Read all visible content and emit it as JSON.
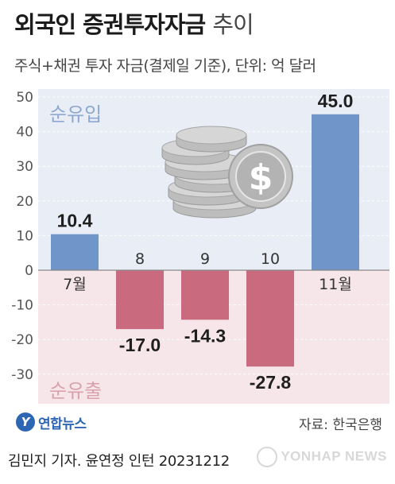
{
  "header": {
    "title_main": "외국인 증권투자자금",
    "title_light": "추이",
    "subtitle": "주식+채권 투자 자금(결제일 기준), 단위: 억 달러"
  },
  "chart_data": {
    "type": "bar",
    "categories": [
      "7월",
      "8",
      "9",
      "10",
      "11월"
    ],
    "values": [
      10.4,
      -17.0,
      -14.3,
      -27.8,
      45.0
    ],
    "value_labels": [
      "10.4",
      "-17.0",
      "-14.3",
      "-27.8",
      "45.0"
    ],
    "ylim": [
      -35,
      50
    ],
    "yticks": [
      -30,
      -20,
      -10,
      0,
      10,
      20,
      30,
      40,
      50
    ],
    "region_labels": {
      "positive": "순유입",
      "negative": "순유출"
    },
    "colors": {
      "positive_bar": "#6f95c9",
      "negative_bar": "#c96a7e",
      "positive_bg": "#e9eef6",
      "negative_bg": "#f6e6ea",
      "positive_label": "#8ea8d1",
      "negative_label": "#d9a0ad"
    }
  },
  "footer": {
    "logo_mark": "Y",
    "logo_text": "연합뉴스",
    "source": "자료: 한국은행",
    "credit": "김민지 기자. 윤연정 인턴  20231212",
    "watermark": "YONHAP NEWS"
  },
  "icons": {
    "coins": "coin-stack-icon"
  }
}
